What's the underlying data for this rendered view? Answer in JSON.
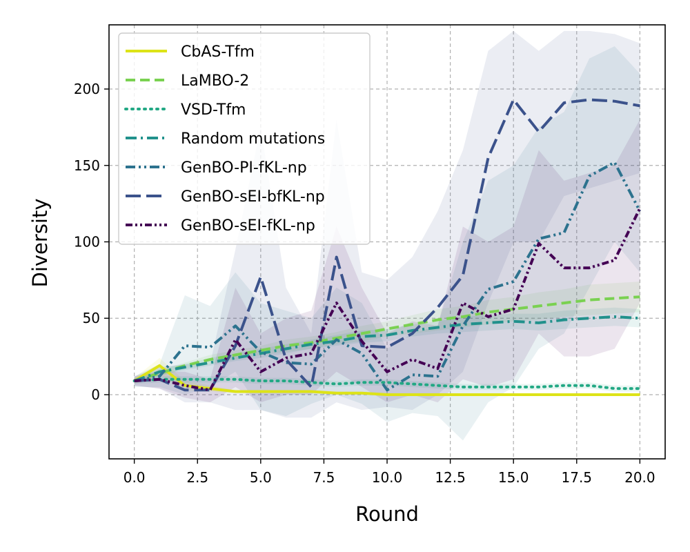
{
  "chart_data": {
    "type": "line",
    "title": "",
    "xlabel": "Round",
    "ylabel": "Diversity",
    "xlim": [
      -1.0,
      21.0
    ],
    "ylim": [
      -42,
      242
    ],
    "xticks": [
      "0.0",
      "2.5",
      "5.0",
      "7.5",
      "10.0",
      "12.5",
      "15.0",
      "17.5",
      "20.0"
    ],
    "xtick_values": [
      0,
      2.5,
      5,
      7.5,
      10,
      12.5,
      15,
      17.5,
      20
    ],
    "yticks": [
      "0",
      "50",
      "100",
      "150",
      "200"
    ],
    "ytick_values": [
      0,
      50,
      100,
      150,
      200
    ],
    "grid": true,
    "legend_position": "top-left",
    "x": [
      0,
      1,
      2,
      3,
      4,
      5,
      6,
      7,
      8,
      9,
      10,
      11,
      12,
      13,
      14,
      15,
      16,
      17,
      18,
      19,
      20
    ],
    "series": [
      {
        "name": "CbAS-Tfm",
        "color": "#dde318",
        "dash": "solid",
        "values": [
          9,
          19,
          6,
          4,
          2,
          2,
          2,
          2,
          1,
          1,
          0,
          0,
          0,
          0,
          0,
          0,
          0,
          0,
          0,
          0,
          0
        ],
        "lower": [
          7,
          13,
          3,
          2,
          1,
          1,
          1,
          1,
          0,
          0,
          0,
          0,
          0,
          0,
          0,
          0,
          0,
          0,
          0,
          0,
          0
        ],
        "upper": [
          11,
          24,
          9,
          6,
          3,
          3,
          3,
          3,
          2,
          2,
          1,
          1,
          1,
          1,
          1,
          1,
          1,
          1,
          1,
          1,
          1
        ]
      },
      {
        "name": "LaMBO-2",
        "color": "#7ad151",
        "dash": "dashed",
        "values": [
          9,
          14,
          19,
          23,
          26,
          29,
          32,
          34,
          37,
          40,
          43,
          46,
          49,
          51,
          54,
          56,
          58,
          60,
          62,
          63,
          64
        ],
        "lower": [
          8,
          12,
          17,
          20,
          23,
          26,
          28,
          30,
          33,
          35,
          38,
          40,
          42,
          44,
          46,
          48,
          49,
          51,
          52,
          53,
          54
        ],
        "upper": [
          10,
          16,
          21,
          26,
          29,
          32,
          36,
          38,
          41,
          45,
          48,
          52,
          56,
          58,
          62,
          64,
          67,
          69,
          72,
          73,
          74
        ]
      },
      {
        "name": "VSD-Tfm",
        "color": "#22a884",
        "dash": "dotted",
        "values": [
          9,
          10,
          10,
          10,
          10,
          9,
          9,
          8,
          7,
          8,
          8,
          7,
          6,
          5,
          5,
          5,
          5,
          6,
          6,
          4,
          4
        ],
        "lower": [
          7,
          8,
          8,
          8,
          8,
          7,
          7,
          6,
          5,
          6,
          6,
          5,
          4,
          3,
          3,
          3,
          3,
          4,
          4,
          2,
          2
        ],
        "upper": [
          11,
          12,
          12,
          12,
          12,
          11,
          11,
          10,
          9,
          10,
          10,
          9,
          8,
          7,
          7,
          7,
          7,
          8,
          8,
          6,
          6
        ]
      },
      {
        "name": "Random mutations",
        "color": "#21918c",
        "dash": "dashdot",
        "values": [
          9,
          15,
          18,
          21,
          24,
          27,
          30,
          33,
          35,
          38,
          39,
          42,
          44,
          46,
          47,
          48,
          47,
          49,
          50,
          51,
          50
        ],
        "lower": [
          8,
          13,
          16,
          19,
          22,
          24,
          27,
          30,
          32,
          34,
          35,
          38,
          40,
          41,
          42,
          43,
          42,
          43,
          44,
          45,
          44
        ],
        "upper": [
          10,
          17,
          20,
          24,
          27,
          30,
          33,
          36,
          39,
          42,
          43,
          46,
          48,
          51,
          52,
          53,
          53,
          55,
          56,
          57,
          56
        ]
      },
      {
        "name": "GenBO-PI-fKL-np",
        "color": "#2c728e",
        "dash": "dashdotdot",
        "values": [
          9,
          12,
          32,
          31,
          45,
          28,
          21,
          20,
          36,
          27,
          3,
          13,
          12,
          45,
          69,
          74,
          102,
          106,
          143,
          152,
          120
        ],
        "lower": [
          5,
          5,
          0,
          5,
          15,
          -10,
          -14,
          -6,
          0,
          -6,
          -18,
          -12,
          -14,
          -30,
          -5,
          5,
          30,
          40,
          70,
          100,
          80
        ],
        "upper": [
          12,
          20,
          65,
          58,
          80,
          60,
          55,
          50,
          70,
          60,
          30,
          40,
          45,
          100,
          140,
          150,
          175,
          185,
          220,
          228,
          210
        ]
      },
      {
        "name": "GenBO-sEI-bfKL-np",
        "color": "#3b528b",
        "dash": "longdash",
        "values": [
          9,
          10,
          3,
          3,
          32,
          77,
          23,
          5,
          90,
          32,
          31,
          40,
          57,
          78,
          155,
          193,
          172,
          191,
          193,
          192,
          189
        ],
        "lower": [
          6,
          4,
          -5,
          -5,
          -10,
          -10,
          -15,
          -15,
          -5,
          -10,
          -8,
          -10,
          0,
          15,
          60,
          100,
          100,
          130,
          135,
          140,
          145
        ],
        "upper": [
          12,
          18,
          20,
          20,
          95,
          175,
          70,
          40,
          180,
          80,
          75,
          90,
          120,
          160,
          225,
          238,
          225,
          238,
          238,
          236,
          230
        ]
      },
      {
        "name": "GenBO-sEI-fKL-np",
        "color": "#440154",
        "dash": "dashdotdot2",
        "values": [
          9,
          10,
          6,
          3,
          36,
          15,
          24,
          27,
          60,
          35,
          15,
          23,
          17,
          60,
          51,
          56,
          99,
          83,
          83,
          88,
          122
        ],
        "lower": [
          6,
          4,
          -2,
          -5,
          5,
          -5,
          0,
          0,
          15,
          5,
          -5,
          0,
          -5,
          10,
          5,
          10,
          40,
          25,
          25,
          30,
          60
        ],
        "upper": [
          12,
          15,
          15,
          10,
          70,
          40,
          50,
          55,
          110,
          70,
          40,
          48,
          45,
          110,
          100,
          110,
          160,
          140,
          145,
          150,
          180
        ]
      }
    ]
  }
}
